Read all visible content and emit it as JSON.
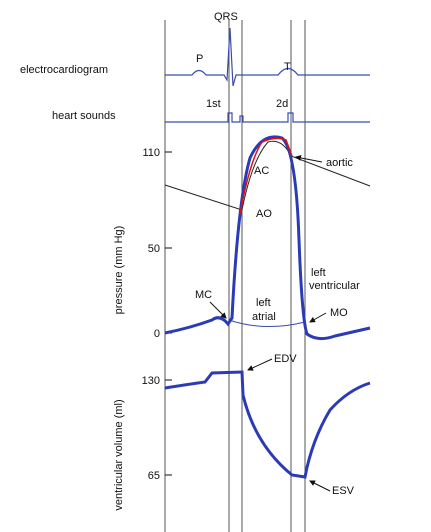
{
  "ecg": {
    "label": "electrocardiogram",
    "qrs": "QRS",
    "p": "P",
    "t": "T"
  },
  "sounds": {
    "label": "heart sounds",
    "first": "1st",
    "second": "2d"
  },
  "pressure": {
    "axis_label": "pressure (mm Hg)",
    "ticks": [
      "110",
      "50",
      "0"
    ],
    "labels": {
      "ac": "AC",
      "aortic": "aortic",
      "ao": "AO",
      "mc": "MC",
      "left_atrial": [
        "left",
        "atrial"
      ],
      "left_ventricular": [
        "left",
        "ventricular"
      ],
      "mo": "MO"
    }
  },
  "volume": {
    "axis_label": "ventricular volume (ml)",
    "ticks": [
      "130",
      "65"
    ],
    "labels": {
      "edv": "EDV",
      "esv": "ESV"
    }
  }
}
